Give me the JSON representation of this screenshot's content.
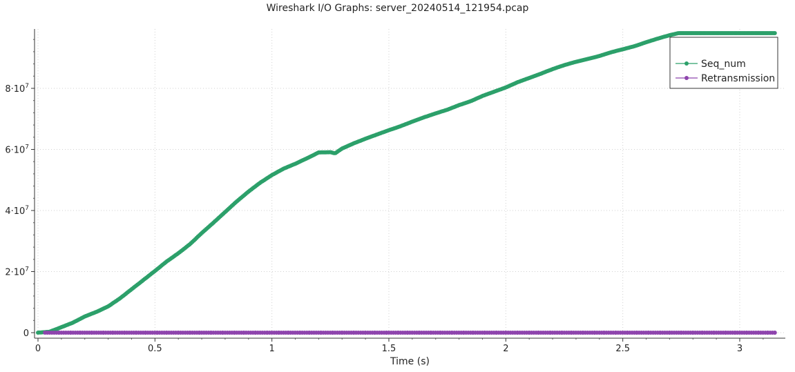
{
  "window": {
    "title": "Wireshark I/O Graphs: server_20240514_121954.pcap"
  },
  "chart_data": {
    "type": "scatter",
    "title": "Wireshark I/O Graphs: server_20240514_121954.pcap",
    "xlabel": "Time (s)",
    "ylabel": "",
    "xlim": [
      0,
      3.2
    ],
    "ylim": [
      0,
      100000000
    ],
    "x_ticks": [
      0,
      0.5,
      1,
      1.5,
      2,
      2.5,
      3
    ],
    "x_tick_labels": [
      "0",
      "0.5",
      "1",
      "1.5",
      "2",
      "2.5",
      "3"
    ],
    "y_ticks": [
      0,
      20000000,
      40000000,
      60000000,
      80000000
    ],
    "y_tick_labels": [
      {
        "mantissa": "0",
        "exponent": ""
      },
      {
        "mantissa": "2·10",
        "exponent": "7"
      },
      {
        "mantissa": "4·10",
        "exponent": "7"
      },
      {
        "mantissa": "6·10",
        "exponent": "7"
      },
      {
        "mantissa": "8·10",
        "exponent": "7"
      }
    ],
    "grid": true,
    "legend_position": "top-right",
    "series": [
      {
        "name": "Seq_num",
        "color": "#2ca06a",
        "style": "line-with-points",
        "points": [
          [
            0.0,
            0
          ],
          [
            0.05,
            300000
          ],
          [
            0.1,
            1800000
          ],
          [
            0.15,
            3300000
          ],
          [
            0.2,
            5300000
          ],
          [
            0.25,
            6800000
          ],
          [
            0.3,
            8600000
          ],
          [
            0.35,
            11200000
          ],
          [
            0.4,
            14200000
          ],
          [
            0.45,
            17200000
          ],
          [
            0.5,
            20200000
          ],
          [
            0.55,
            23300000
          ],
          [
            0.6,
            26000000
          ],
          [
            0.65,
            29000000
          ],
          [
            0.7,
            32600000
          ],
          [
            0.75,
            36000000
          ],
          [
            0.8,
            39500000
          ],
          [
            0.85,
            43000000
          ],
          [
            0.9,
            46200000
          ],
          [
            0.95,
            49100000
          ],
          [
            1.0,
            51600000
          ],
          [
            1.05,
            53700000
          ],
          [
            1.1,
            55300000
          ],
          [
            1.15,
            57100000
          ],
          [
            1.2,
            59000000
          ],
          [
            1.25,
            59100000
          ],
          [
            1.27,
            58700000
          ],
          [
            1.3,
            60300000
          ],
          [
            1.35,
            62000000
          ],
          [
            1.4,
            63500000
          ],
          [
            1.45,
            64900000
          ],
          [
            1.5,
            66300000
          ],
          [
            1.55,
            67600000
          ],
          [
            1.6,
            69100000
          ],
          [
            1.65,
            70500000
          ],
          [
            1.7,
            71800000
          ],
          [
            1.75,
            73000000
          ],
          [
            1.8,
            74500000
          ],
          [
            1.85,
            75800000
          ],
          [
            1.9,
            77500000
          ],
          [
            1.95,
            78900000
          ],
          [
            2.0,
            80300000
          ],
          [
            2.05,
            82000000
          ],
          [
            2.1,
            83400000
          ],
          [
            2.15,
            84800000
          ],
          [
            2.2,
            86300000
          ],
          [
            2.25,
            87600000
          ],
          [
            2.3,
            88700000
          ],
          [
            2.35,
            89600000
          ],
          [
            2.4,
            90600000
          ],
          [
            2.45,
            91800000
          ],
          [
            2.5,
            92800000
          ],
          [
            2.55,
            93800000
          ],
          [
            2.6,
            95100000
          ],
          [
            2.65,
            96300000
          ],
          [
            2.7,
            97400000
          ],
          [
            2.75,
            98300000
          ],
          [
            2.8,
            99000000
          ],
          [
            2.85,
            99800000
          ],
          [
            2.9,
            100600000
          ],
          [
            2.95,
            101400000
          ],
          [
            3.0,
            102000000
          ],
          [
            3.05,
            102800000
          ],
          [
            3.1,
            103600000
          ],
          [
            3.15,
            104500000
          ]
        ]
      },
      {
        "name": "Retransmission",
        "color": "#8e44ad",
        "style": "points",
        "points": [
          [
            0.03,
            0
          ],
          [
            0.09,
            0
          ],
          [
            0.14,
            0
          ],
          [
            0.18,
            0
          ],
          [
            0.23,
            0
          ],
          [
            0.28,
            0
          ],
          [
            0.32,
            0
          ],
          [
            0.37,
            0
          ],
          [
            0.42,
            0
          ],
          [
            0.46,
            0
          ],
          [
            0.51,
            0
          ],
          [
            0.55,
            0
          ],
          [
            0.6,
            0
          ],
          [
            0.65,
            0
          ],
          [
            0.69,
            0
          ],
          [
            0.74,
            0
          ],
          [
            0.79,
            0
          ],
          [
            0.84,
            0
          ],
          [
            0.88,
            0
          ],
          [
            0.93,
            0
          ],
          [
            0.98,
            0
          ],
          [
            1.03,
            0
          ],
          [
            1.07,
            0
          ],
          [
            1.12,
            0
          ],
          [
            1.16,
            0
          ],
          [
            1.21,
            0
          ],
          [
            1.26,
            0
          ],
          [
            1.3,
            0
          ],
          [
            1.35,
            0
          ],
          [
            1.4,
            0
          ],
          [
            1.44,
            0
          ],
          [
            1.49,
            0
          ],
          [
            1.54,
            0
          ],
          [
            1.58,
            0
          ],
          [
            1.63,
            0
          ],
          [
            1.68,
            0
          ],
          [
            1.72,
            0
          ],
          [
            1.77,
            0
          ],
          [
            1.82,
            0
          ],
          [
            1.86,
            0
          ],
          [
            1.91,
            0
          ],
          [
            1.96,
            0
          ],
          [
            2.0,
            0
          ],
          [
            2.05,
            0
          ],
          [
            2.1,
            0
          ],
          [
            2.14,
            0
          ],
          [
            2.19,
            0
          ],
          [
            2.24,
            0
          ],
          [
            2.28,
            0
          ],
          [
            2.33,
            0
          ],
          [
            2.38,
            0
          ],
          [
            2.42,
            0
          ],
          [
            2.47,
            0
          ],
          [
            2.52,
            0
          ],
          [
            2.56,
            0
          ],
          [
            2.61,
            0
          ],
          [
            2.66,
            0
          ],
          [
            2.7,
            0
          ],
          [
            2.75,
            0
          ],
          [
            2.8,
            0
          ],
          [
            2.84,
            0
          ],
          [
            2.89,
            0
          ],
          [
            2.94,
            0
          ],
          [
            2.98,
            0
          ],
          [
            3.03,
            0
          ],
          [
            3.08,
            0
          ],
          [
            3.12,
            0
          ],
          [
            3.15,
            0
          ]
        ]
      }
    ]
  }
}
